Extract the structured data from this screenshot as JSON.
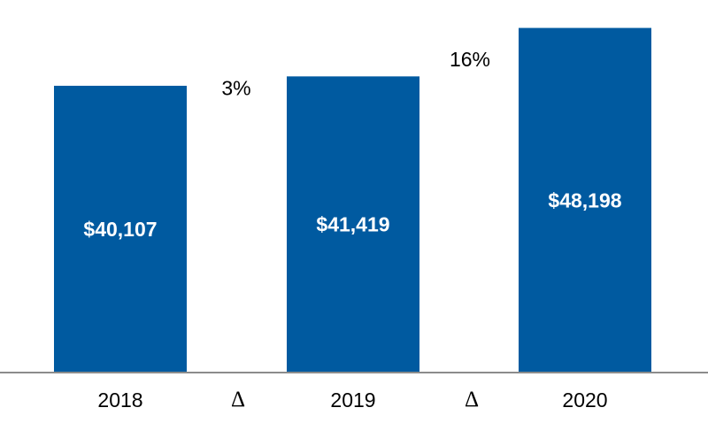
{
  "chart_data": {
    "type": "bar",
    "categories": [
      "2018",
      "2019",
      "2020"
    ],
    "values": [
      40107,
      41419,
      48198
    ],
    "value_labels": [
      "$40,107",
      "$41,419",
      "$48,198"
    ],
    "changes": [
      {
        "symbol": "Δ",
        "label": "3%"
      },
      {
        "symbol": "Δ",
        "label": "16%"
      }
    ],
    "ylim": [
      0,
      50000
    ],
    "grid": false,
    "colors": {
      "bar": "#005AA0",
      "axis": "#8C8C8C",
      "text": "#000000"
    }
  }
}
